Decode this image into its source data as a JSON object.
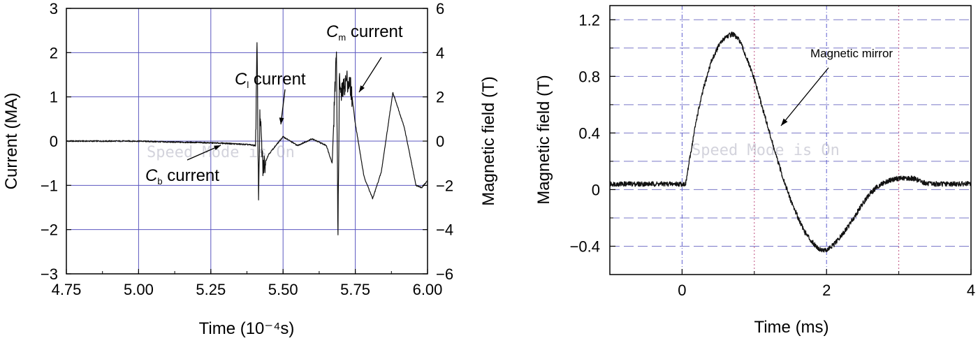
{
  "watermark": "Speed Mode is On",
  "colors": {
    "grid_left": "#5b57c0",
    "grid_right_h": "#7a78c8",
    "grid_right_v_blue": "#5f5fd0",
    "grid_right_v_pink": "#c05080",
    "trace": "#111111"
  },
  "chart_data": [
    {
      "type": "line",
      "xlabel": "Time (10⁻⁴s)",
      "ylabel_left": "Current (MA)",
      "ylabel_right": "Magnetic field (T)",
      "xlim": [
        4.75,
        6.0
      ],
      "ylim_left": [
        -3,
        3
      ],
      "ylim_right": [
        -6,
        6
      ],
      "x_ticks": [
        "4.75",
        "5.00",
        "5.25",
        "5.50",
        "5.75",
        "6.00"
      ],
      "y_ticks_left": [
        "3",
        "2",
        "1",
        "0",
        "−1",
        "−2",
        "−3"
      ],
      "y_ticks_right": [
        "6",
        "4",
        "2",
        "0",
        "−2",
        "−4",
        "−6"
      ],
      "grid": true,
      "annotations": [
        {
          "prefix": "C",
          "sub": "b",
          "suffix": " current",
          "x": 5.27,
          "y": -0.05
        },
        {
          "prefix": "C",
          "sub": "l",
          "suffix": " current",
          "x": 5.5,
          "y": 0.08
        },
        {
          "prefix": "C",
          "sub": "m",
          "suffix": " current",
          "x": 5.75,
          "y": 1.05
        }
      ],
      "series": [
        {
          "x": [
            4.75,
            4.85,
            5.0,
            5.1,
            5.2,
            5.3,
            5.38,
            5.405,
            5.41,
            5.415,
            5.42,
            5.43,
            5.45,
            5.5,
            5.55,
            5.6,
            5.65,
            5.67,
            5.685,
            5.69,
            5.695,
            5.7,
            5.72,
            5.735,
            5.75,
            5.78,
            5.81,
            5.84,
            5.88,
            5.92,
            5.96,
            5.98,
            6.0
          ],
          "values": [
            0.0,
            0.0,
            0.0,
            -0.02,
            -0.03,
            -0.05,
            -0.08,
            -0.1,
            2.25,
            -1.3,
            0.6,
            -0.6,
            -0.3,
            0.1,
            -0.1,
            0.05,
            -0.1,
            -0.5,
            2.1,
            -2.25,
            1.5,
            1.0,
            1.4,
            1.2,
            0.4,
            -0.8,
            -1.3,
            -0.7,
            1.1,
            0.3,
            -1.0,
            -1.05,
            -0.9
          ]
        }
      ]
    },
    {
      "type": "line",
      "xlabel": "Time (ms)",
      "ylabel": "Magnetic field (T)",
      "xlim": [
        -1,
        4
      ],
      "ylim": [
        -0.6,
        1.3
      ],
      "x_ticks": [
        "0",
        "2",
        "4"
      ],
      "y_ticks": [
        "1.2",
        "0.8",
        "0.4",
        "0",
        "−0.4"
      ],
      "grid": true,
      "annotations": [
        {
          "text": "Magnetic mirror",
          "x": 1.3,
          "y": 0.45
        }
      ],
      "series": [
        {
          "x": [
            -1.0,
            -0.5,
            0.0,
            0.05,
            0.1,
            0.2,
            0.3,
            0.4,
            0.5,
            0.6,
            0.7,
            0.8,
            0.9,
            1.0,
            1.1,
            1.2,
            1.3,
            1.4,
            1.5,
            1.6,
            1.7,
            1.8,
            1.9,
            2.0,
            2.1,
            2.2,
            2.3,
            2.4,
            2.5,
            2.6,
            2.7,
            2.8,
            2.9,
            3.0,
            3.1,
            3.2,
            3.3,
            3.4,
            3.5,
            3.6,
            3.7,
            3.8,
            3.9,
            4.0
          ],
          "values": [
            0.04,
            0.04,
            0.04,
            0.04,
            0.2,
            0.5,
            0.72,
            0.9,
            1.01,
            1.08,
            1.1,
            1.05,
            0.92,
            0.78,
            0.6,
            0.42,
            0.24,
            0.08,
            -0.07,
            -0.19,
            -0.3,
            -0.37,
            -0.42,
            -0.43,
            -0.39,
            -0.33,
            -0.26,
            -0.18,
            -0.1,
            -0.03,
            0.02,
            0.05,
            0.07,
            0.08,
            0.08,
            0.08,
            0.06,
            0.04,
            0.04,
            0.04,
            0.04,
            0.04,
            0.04,
            0.04
          ]
        }
      ]
    }
  ]
}
